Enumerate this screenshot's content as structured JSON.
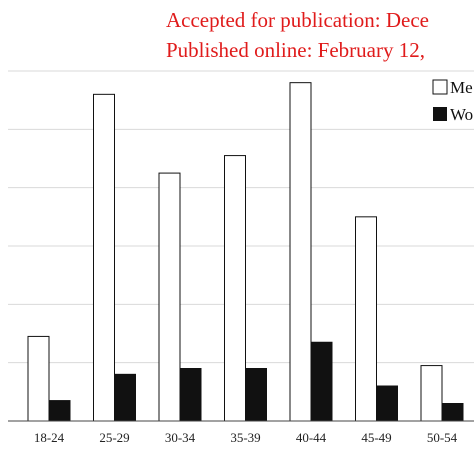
{
  "header": {
    "line1": "Accepted for publication: Dece",
    "line2": "Published online: February 12,",
    "color": "#e01b1b"
  },
  "chart_data": {
    "type": "bar",
    "categories": [
      "18-24",
      "25-29",
      "30-34",
      "35-39",
      "40-44",
      "45-49",
      "50-54"
    ],
    "series": [
      {
        "name": "Me",
        "color": "#ffffff",
        "values": [
          14.5,
          56.0,
          42.5,
          45.5,
          58.0,
          35.0,
          9.5
        ]
      },
      {
        "name": "Wo",
        "color": "#111111",
        "values": [
          3.5,
          8.0,
          9.0,
          9.0,
          13.5,
          6.0,
          3.0
        ]
      }
    ],
    "ylim": [
      0,
      60
    ],
    "grid": true,
    "legend": "top-right"
  }
}
